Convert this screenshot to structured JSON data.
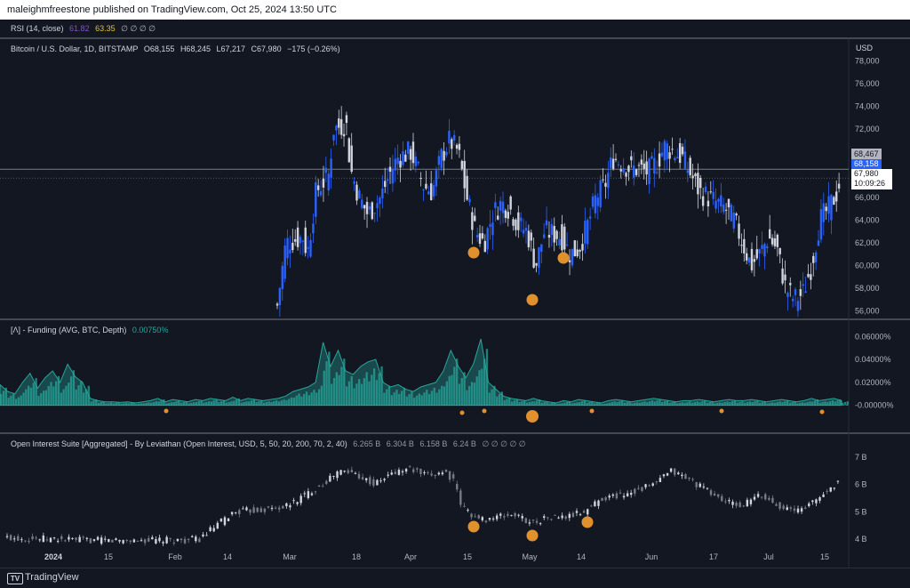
{
  "header": {
    "published": "maleighmfreestone published on TradingView.com, Oct 25, 2024 13:50 UTC"
  },
  "rsi": {
    "label": "RSI (14, close)",
    "v1": "61.82",
    "v2": "63.35",
    "nulls": "∅ ∅ ∅ ∅"
  },
  "price_pane": {
    "title": "Bitcoin / U.S. Dollar, 1D, BITSTAMP",
    "o": "O68,155",
    "h": "H68,245",
    "l": "L67,217",
    "c": "C67,980",
    "chg": "−175 (−0.26%)",
    "currency": "USD",
    "last_price": "67,980",
    "countdown": "10:09:26",
    "tag_upper": "68,467",
    "tag_mid": "68,158"
  },
  "funding": {
    "label": "[Λ] - Funding (AVG, BTC, Depth)",
    "value": "0.00750%"
  },
  "oi": {
    "label": "Open Interest Suite [Aggregated] - By Leviathan (Open Interest, USD, 5, 50, 20, 200, 70, 2, 40)",
    "v1": "6.265 B",
    "v2": "6.304 B",
    "v3": "6.158 B",
    "v4": "6.24 B",
    "nulls": "∅ ∅ ∅ ∅ ∅"
  },
  "footer": {
    "brand": "TradingView"
  },
  "colors": {
    "bg": "#131722",
    "up": "#2962ff",
    "down": "#d1d4dc",
    "funding": "#26a69a",
    "marker": "#e0902d"
  },
  "chart_data": [
    {
      "type": "candlestick",
      "title": "Bitcoin / U.S. Dollar, 1D, BITSTAMP",
      "x_ticks": [
        "2024",
        "15",
        "Feb",
        "14",
        "Mar",
        "18",
        "Apr",
        "15",
        "May",
        "14",
        "Jun",
        "17",
        "Jul",
        "15"
      ],
      "y_ticks": [
        "78,000",
        "76,000",
        "74,000",
        "72,000",
        "70,000",
        "68,000",
        "66,000",
        "64,000",
        "62,000",
        "60,000",
        "58,000",
        "56,000"
      ],
      "ylim": [
        55500,
        78500
      ],
      "close_path": [
        [
          0,
          54500
        ],
        [
          0.29,
          54800
        ],
        [
          0.3,
          56500
        ],
        [
          0.31,
          62000
        ],
        [
          0.33,
          62500
        ],
        [
          0.335,
          61000
        ],
        [
          0.345,
          66500
        ],
        [
          0.36,
          68000
        ],
        [
          0.365,
          72000
        ],
        [
          0.38,
          72500
        ],
        [
          0.385,
          68500
        ],
        [
          0.395,
          66000
        ],
        [
          0.405,
          64500
        ],
        [
          0.42,
          66000
        ],
        [
          0.43,
          68000
        ],
        [
          0.44,
          69500
        ],
        [
          0.455,
          70000
        ],
        [
          0.47,
          67000
        ],
        [
          0.48,
          66500
        ],
        [
          0.49,
          69500
        ],
        [
          0.5,
          71000
        ],
        [
          0.51,
          70000
        ],
        [
          0.52,
          66000
        ],
        [
          0.53,
          63000
        ],
        [
          0.54,
          62000
        ],
        [
          0.55,
          64500
        ],
        [
          0.56,
          65500
        ],
        [
          0.57,
          65000
        ],
        [
          0.58,
          63500
        ],
        [
          0.59,
          63000
        ],
        [
          0.6,
          60000
        ],
        [
          0.61,
          63000
        ],
        [
          0.62,
          62800
        ],
        [
          0.63,
          62500
        ],
        [
          0.64,
          61000
        ],
        [
          0.65,
          61500
        ],
        [
          0.66,
          63500
        ],
        [
          0.67,
          66000
        ],
        [
          0.68,
          67000
        ],
        [
          0.69,
          69500
        ],
        [
          0.7,
          69000
        ],
        [
          0.71,
          68500
        ],
        [
          0.72,
          68500
        ],
        [
          0.73,
          68200
        ],
        [
          0.74,
          69000
        ],
        [
          0.75,
          70500
        ],
        [
          0.76,
          70000
        ],
        [
          0.77,
          69500
        ],
        [
          0.78,
          68000
        ],
        [
          0.79,
          66500
        ],
        [
          0.8,
          66000
        ],
        [
          0.81,
          65500
        ],
        [
          0.82,
          65000
        ],
        [
          0.83,
          64000
        ],
        [
          0.84,
          62000
        ],
        [
          0.85,
          60000
        ],
        [
          0.86,
          61000
        ],
        [
          0.87,
          62500
        ],
        [
          0.88,
          61500
        ],
        [
          0.89,
          58000
        ],
        [
          0.9,
          57000
        ],
        [
          0.91,
          57500
        ],
        [
          0.92,
          60000
        ],
        [
          0.93,
          64000
        ],
        [
          0.94,
          65000
        ],
        [
          0.95,
          66500
        ],
        [
          0.955,
          67980
        ]
      ]
    },
    {
      "type": "area",
      "title": "[Λ] - Funding (AVG, BTC, Depth)",
      "y_ticks": [
        "0.06000%",
        "0.04000%",
        "0.02000%",
        "-0.00000%"
      ],
      "ylim": [
        -0.005,
        0.065
      ],
      "values_pct": [
        0.018,
        0.012,
        0.01,
        0.02,
        0.028,
        0.015,
        0.024,
        0.03,
        0.02,
        0.036,
        0.025,
        0.02,
        0.006,
        0.004,
        0.003,
        0.003,
        0.0025,
        0.003,
        0.002,
        0.003,
        0.004,
        0.006,
        0.003,
        0.005,
        0.004,
        0.003,
        0.005,
        0.004,
        0.006,
        0.005,
        0.004,
        0.007,
        0.004,
        0.006,
        0.005,
        0.004,
        0.005,
        0.006,
        0.008,
        0.012,
        0.014,
        0.016,
        0.02,
        0.055,
        0.034,
        0.048,
        0.03,
        0.027,
        0.034,
        0.038,
        0.04,
        0.02,
        0.016,
        0.018,
        0.014,
        0.012,
        0.016,
        0.018,
        0.02,
        0.03,
        0.048,
        0.034,
        0.024,
        0.036,
        0.058,
        0.02,
        0.014,
        0.008,
        0.006,
        0.005,
        0.004,
        0.006,
        0.004,
        0.003,
        0.002,
        0.004,
        0.003,
        0.005,
        0.004,
        0.003,
        0.002,
        0.004,
        0.005,
        0.004,
        0.003,
        0.004,
        0.005,
        0.006,
        0.005,
        0.004,
        0.003,
        0.004,
        0.004,
        0.005,
        0.004,
        0.003,
        0.004,
        0.005,
        0.004,
        0.004,
        0.005,
        0.004,
        0.003,
        0.004,
        0.005,
        0.004,
        0.003,
        0.004,
        0.006,
        0.004,
        0.005,
        0.006,
        0.004
      ]
    },
    {
      "type": "candlestick",
      "title": "Open Interest Suite [Aggregated] - By Leviathan (Open Interest, USD, 5, 50, 20, 200, 70, 2, 40)",
      "y_ticks": [
        "7 B",
        "6 B",
        "5 B",
        "4 B"
      ],
      "ylim": [
        3.8,
        7.3
      ],
      "close_path": [
        [
          0,
          4.05
        ],
        [
          0.05,
          4.0
        ],
        [
          0.1,
          3.95
        ],
        [
          0.15,
          3.95
        ],
        [
          0.2,
          3.95
        ],
        [
          0.22,
          4.0
        ],
        [
          0.24,
          4.5
        ],
        [
          0.26,
          5.0
        ],
        [
          0.28,
          5.05
        ],
        [
          0.3,
          5.1
        ],
        [
          0.32,
          5.2
        ],
        [
          0.34,
          5.6
        ],
        [
          0.36,
          6.0
        ],
        [
          0.38,
          6.5
        ],
        [
          0.4,
          6.4
        ],
        [
          0.42,
          6.0
        ],
        [
          0.44,
          6.4
        ],
        [
          0.46,
          6.6
        ],
        [
          0.48,
          6.3
        ],
        [
          0.5,
          6.5
        ],
        [
          0.51,
          6.2
        ],
        [
          0.52,
          5.2
        ],
        [
          0.54,
          4.7
        ],
        [
          0.56,
          4.8
        ],
        [
          0.58,
          4.9
        ],
        [
          0.6,
          4.6
        ],
        [
          0.62,
          4.8
        ],
        [
          0.64,
          4.8
        ],
        [
          0.66,
          5.0
        ],
        [
          0.68,
          5.5
        ],
        [
          0.7,
          5.6
        ],
        [
          0.72,
          5.8
        ],
        [
          0.74,
          6.0
        ],
        [
          0.76,
          6.5
        ],
        [
          0.78,
          6.2
        ],
        [
          0.8,
          5.8
        ],
        [
          0.82,
          5.4
        ],
        [
          0.84,
          5.2
        ],
        [
          0.86,
          5.6
        ],
        [
          0.88,
          5.3
        ],
        [
          0.9,
          5.0
        ],
        [
          0.92,
          5.3
        ],
        [
          0.94,
          5.8
        ],
        [
          0.955,
          6.25
        ]
      ]
    }
  ]
}
